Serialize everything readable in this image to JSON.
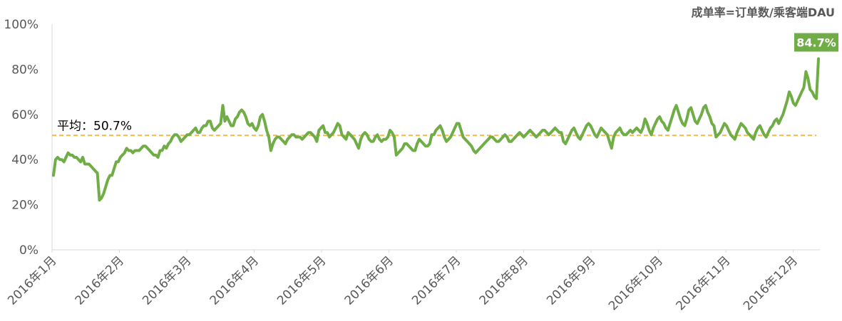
{
  "chart_data": {
    "type": "line",
    "note": "成单率=订单数/乘客端DAU",
    "ylim": [
      0,
      100
    ],
    "yticks": [
      "0%",
      "20%",
      "40%",
      "60%",
      "80%",
      "100%"
    ],
    "xticks": [
      "2016年1月",
      "2016年2月",
      "2016年3月",
      "2016年4月",
      "2016年5月",
      "2016年6月",
      "2016年7月",
      "2016年8月",
      "2016年9月",
      "2016年10月",
      "2016年11月",
      "2016年12月"
    ],
    "x_start": "2016-01-01",
    "x_end": "2016-12-28",
    "average": {
      "value": 50.7,
      "label": "平均：50.7%"
    },
    "end_label": "84.7%",
    "colors": {
      "line": "#70ad47",
      "average": "#f4b942",
      "axis": "#d9d9d9",
      "label_bg": "#70ad47"
    },
    "series": [
      {
        "values": [
          33,
          40,
          41,
          40,
          40,
          39,
          41,
          43,
          42,
          42,
          41,
          41,
          40,
          39,
          41,
          38,
          38,
          38,
          37,
          36,
          35,
          34,
          22,
          23,
          25,
          28,
          31,
          33,
          33,
          36,
          39,
          39,
          41,
          42,
          43,
          45,
          44,
          44,
          43,
          44,
          44,
          44,
          45,
          46,
          46,
          45,
          44,
          43,
          42,
          42,
          41,
          44,
          44,
          46,
          45,
          47,
          48,
          50,
          51,
          51,
          50,
          48,
          49,
          50,
          51,
          51,
          52,
          53,
          54,
          52,
          52,
          54,
          55,
          55,
          57,
          57,
          54,
          53,
          54,
          55,
          56,
          64,
          57,
          59,
          57,
          55,
          55,
          58,
          59,
          61,
          62,
          61,
          59,
          56,
          55,
          56,
          54,
          53,
          55,
          59,
          60,
          57,
          53,
          50,
          44,
          47,
          49,
          50,
          50,
          49,
          48,
          47,
          49,
          50,
          51,
          51,
          50,
          50,
          50,
          49,
          50,
          51,
          52,
          52,
          51,
          50,
          48,
          53,
          54,
          55,
          52,
          52,
          50,
          51,
          52,
          54,
          56,
          55,
          51,
          50,
          49,
          52,
          51,
          50,
          49,
          47,
          45,
          49,
          51,
          52,
          51,
          49,
          48,
          48,
          50,
          51,
          49,
          48,
          49,
          49,
          50,
          53,
          52,
          50,
          42,
          43,
          44,
          45,
          47,
          47,
          46,
          45,
          44,
          44,
          47,
          49,
          48,
          47,
          46,
          46,
          47,
          51,
          51,
          53,
          54,
          55,
          53,
          50,
          48,
          49,
          50,
          52,
          54,
          56,
          56,
          53,
          50,
          49,
          48,
          47,
          46,
          44,
          43,
          44,
          45,
          46,
          47,
          48,
          49,
          50,
          50,
          49,
          48,
          48,
          49,
          50,
          51,
          50,
          48,
          48,
          49,
          50,
          51,
          52,
          51,
          50,
          51,
          52,
          53,
          52,
          51,
          50,
          51,
          52,
          53,
          53,
          52,
          51,
          52,
          53,
          54,
          53,
          52,
          52,
          48,
          47,
          49,
          51,
          53,
          54,
          52,
          50,
          49,
          51,
          53,
          55,
          56,
          55,
          53,
          51,
          50,
          52,
          54,
          53,
          52,
          51,
          48,
          45,
          50,
          52,
          53,
          54,
          52,
          51,
          51,
          52,
          53,
          52,
          53,
          54,
          53,
          52,
          54,
          58,
          56,
          53,
          51,
          54,
          56,
          58,
          59,
          57,
          56,
          54,
          53,
          56,
          59,
          62,
          64,
          61,
          58,
          56,
          55,
          58,
          62,
          63,
          60,
          57,
          56,
          58,
          60,
          63,
          64,
          61,
          59,
          56,
          55,
          50,
          51,
          52,
          54,
          56,
          55,
          53,
          51,
          50,
          49,
          52,
          54,
          56,
          55,
          54,
          52,
          51,
          50,
          49,
          52,
          54,
          55,
          53,
          51,
          50,
          52,
          54,
          55,
          57,
          58,
          56,
          58,
          60,
          63,
          66,
          70,
          68,
          65,
          64,
          66,
          68,
          70,
          72,
          79,
          76,
          71,
          70,
          68,
          67,
          84.7
        ]
      }
    ]
  }
}
